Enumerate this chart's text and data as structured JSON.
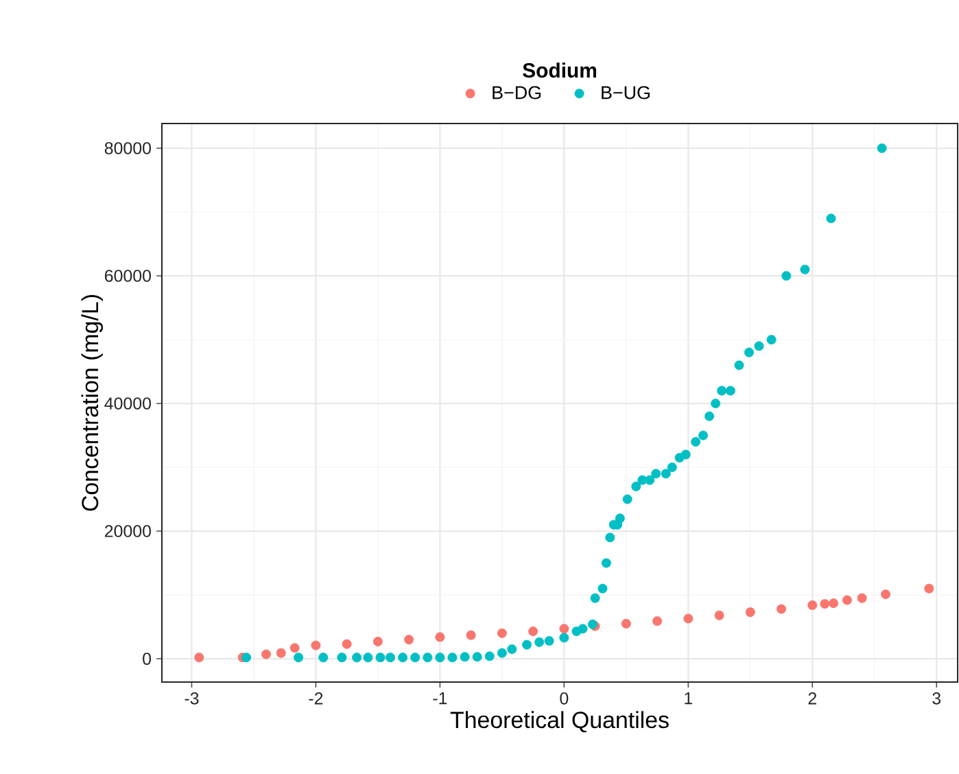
{
  "chart_data": {
    "type": "scatter",
    "title": "Sodium",
    "xlabel": "Theoretical Quantiles",
    "ylabel": "Concentration (mg/L)",
    "xlim": [
      -3.24,
      3.17
    ],
    "ylim": [
      -3650,
      83870
    ],
    "xticks": [
      -3,
      -2,
      -1,
      0,
      1,
      2,
      3
    ],
    "yticks": [
      0,
      20000,
      40000,
      60000,
      80000
    ],
    "grid": true,
    "legend": "top",
    "marker": "circle",
    "series": [
      {
        "name": "B−DG",
        "color": "#f8766d",
        "x": [
          -2.94,
          -2.59,
          -2.4,
          -2.28,
          -2.17,
          -2.0,
          -1.75,
          -1.5,
          -1.25,
          -1.0,
          -0.75,
          -0.5,
          -0.25,
          0.0,
          0.25,
          0.5,
          0.75,
          1.0,
          1.25,
          1.5,
          1.75,
          2.0,
          2.1,
          2.17,
          2.28,
          2.4,
          2.59,
          2.94
        ],
        "values": [
          200,
          200,
          700,
          900,
          1700,
          2100,
          2300,
          2700,
          3000,
          3400,
          3700,
          4000,
          4300,
          4700,
          5100,
          5500,
          5900,
          6300,
          6800,
          7300,
          7800,
          8400,
          8600,
          8700,
          9200,
          9500,
          10100,
          11000
        ]
      },
      {
        "name": "B−UG",
        "color": "#00bfc4",
        "x": [
          -2.56,
          -2.14,
          -1.94,
          -1.79,
          -1.67,
          -1.58,
          -1.48,
          -1.4,
          -1.3,
          -1.2,
          -1.1,
          -1.0,
          -0.9,
          -0.8,
          -0.7,
          -0.6,
          -0.5,
          -0.42,
          -0.3,
          -0.2,
          -0.12,
          0.0,
          0.1,
          0.15,
          0.23,
          0.25,
          0.31,
          0.34,
          0.37,
          0.4,
          0.43,
          0.45,
          0.51,
          0.58,
          0.63,
          0.69,
          0.74,
          0.82,
          0.87,
          0.93,
          0.98,
          1.06,
          1.12,
          1.17,
          1.22,
          1.27,
          1.34,
          1.41,
          1.49,
          1.57,
          1.67,
          1.79,
          1.94,
          2.15,
          2.56
        ],
        "values": [
          200,
          200,
          200,
          200,
          200,
          200,
          200,
          200,
          200,
          200,
          200,
          200,
          200,
          300,
          300,
          400,
          900,
          1500,
          2200,
          2600,
          2800,
          3300,
          4300,
          4700,
          5400,
          9500,
          11000,
          15000,
          19000,
          21000,
          21000,
          22000,
          25000,
          27000,
          28000,
          28000,
          29000,
          29000,
          30000,
          31500,
          32000,
          34000,
          35000,
          38000,
          40000,
          42000,
          42000,
          46000,
          48000,
          49000,
          50000,
          60000,
          61000,
          69000,
          80000
        ]
      }
    ]
  }
}
